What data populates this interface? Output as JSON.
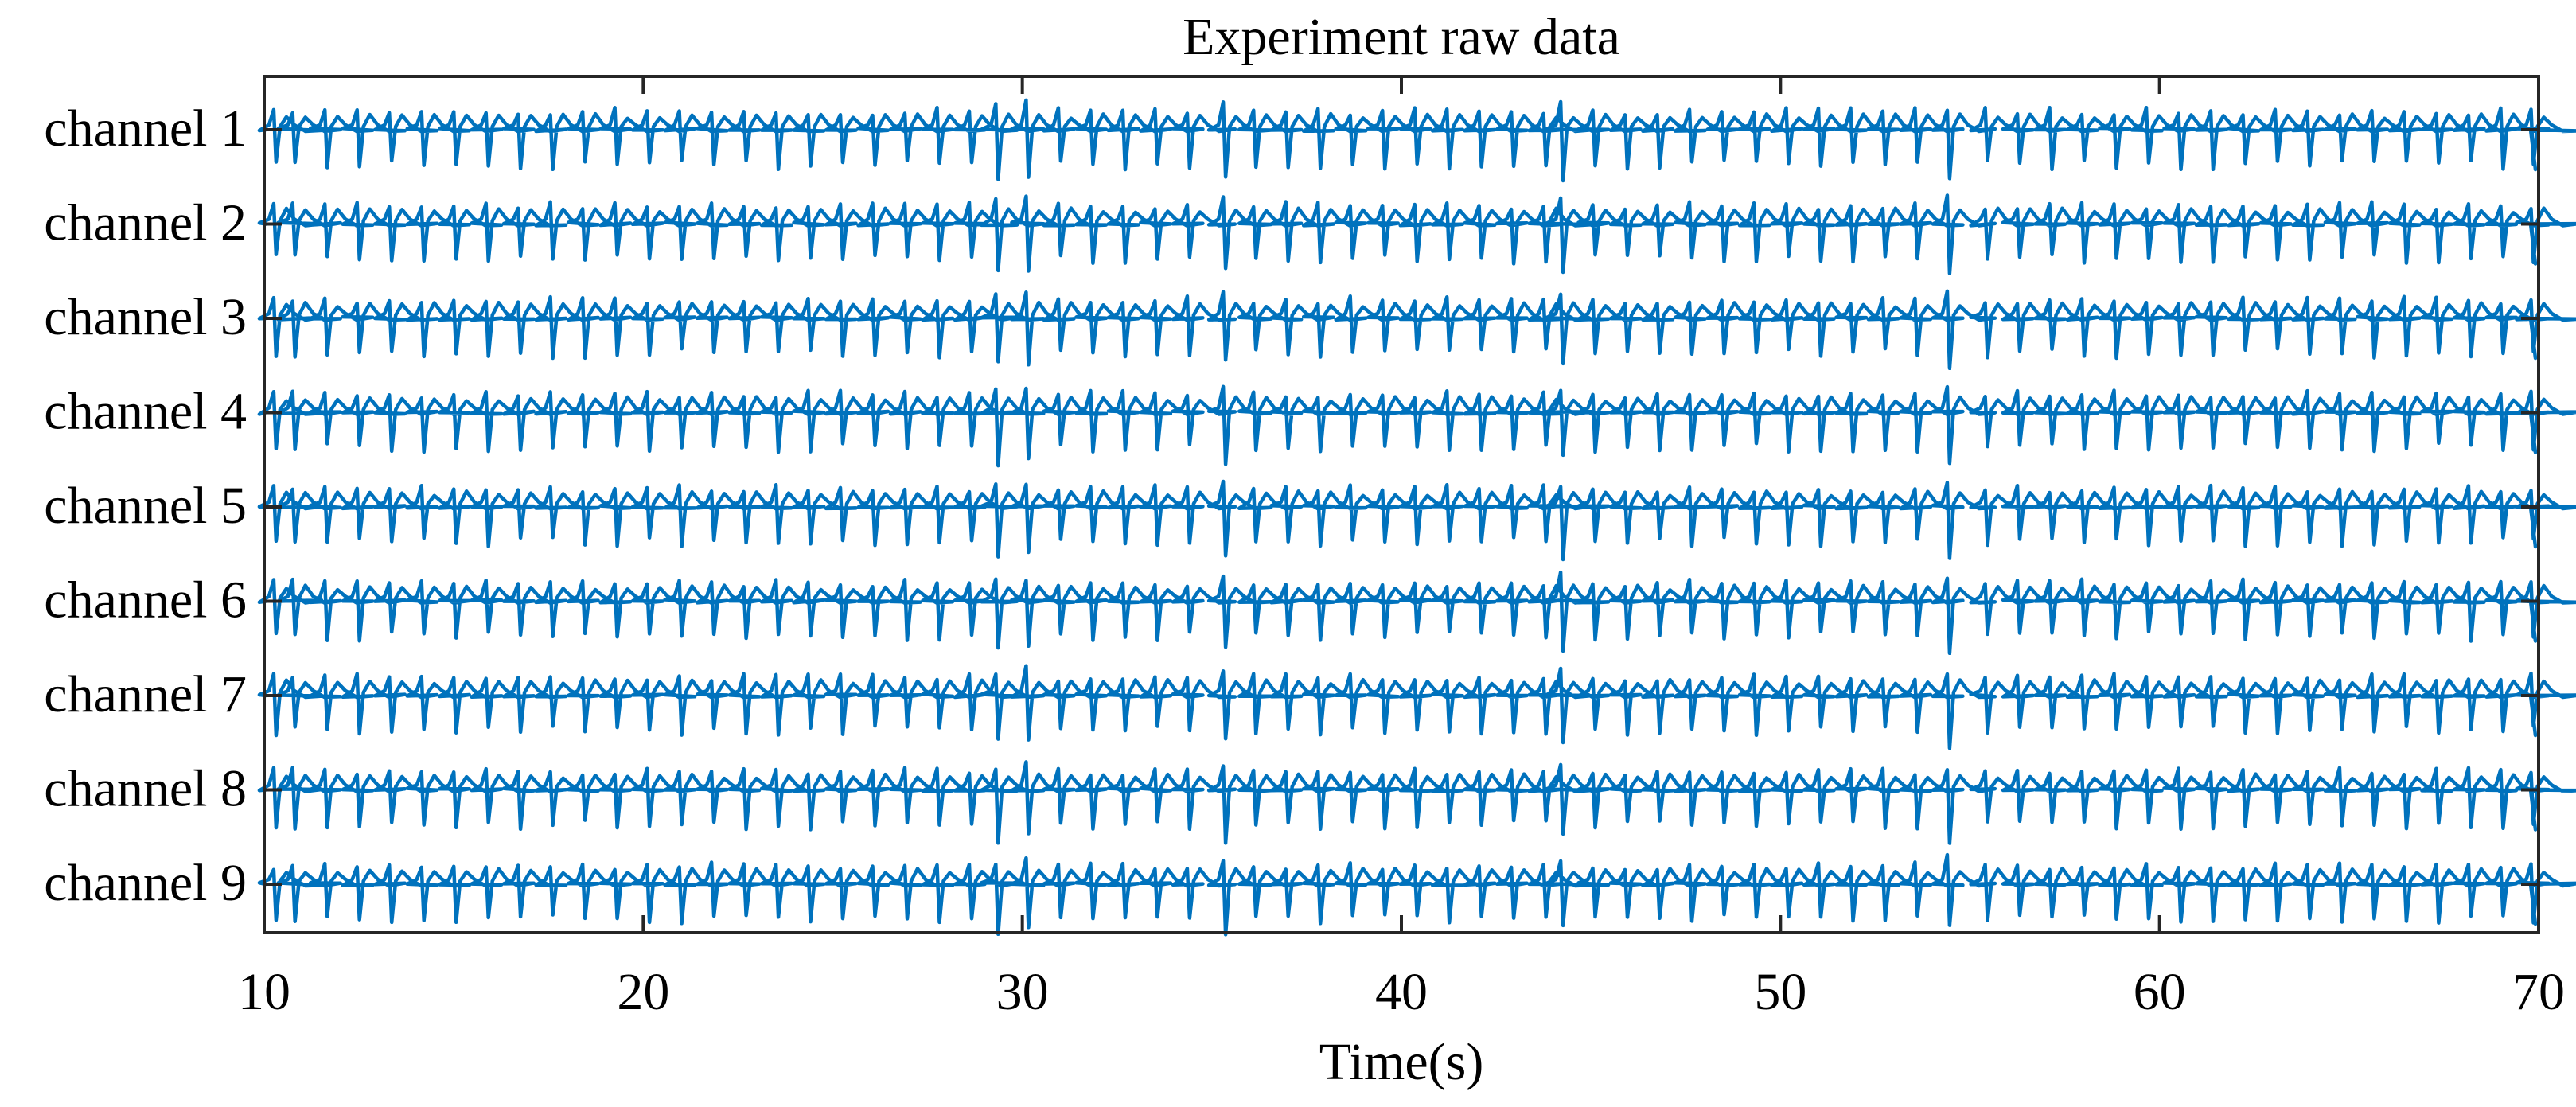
{
  "chart_data": {
    "type": "line",
    "title": "Experiment raw data",
    "xlabel": "Time(s)",
    "ylabel": "",
    "xlim": [
      10,
      70
    ],
    "x_ticks": [
      10,
      20,
      30,
      40,
      50,
      60,
      70
    ],
    "x_tick_labels": [
      "10",
      "20",
      "30",
      "40",
      "50",
      "60",
      "70"
    ],
    "grid": false,
    "legend": "none",
    "line_color": "#0072BD",
    "series": [
      {
        "name": "channel 1"
      },
      {
        "name": "channel 2"
      },
      {
        "name": "channel 3"
      },
      {
        "name": "channel 4"
      },
      {
        "name": "channel 5"
      },
      {
        "name": "channel 6"
      },
      {
        "name": "channel 7"
      },
      {
        "name": "channel 8"
      },
      {
        "name": "channel 9"
      }
    ],
    "signal": {
      "description": "periodic cardiac-like spikes, identical pattern across channels",
      "beat_period_s": 0.83,
      "first_beat_s": 10.25,
      "beat_times_s": [
        10.25,
        10.75,
        11.6,
        12.45,
        13.3,
        14.15,
        15.0,
        15.85,
        16.7,
        17.55,
        18.4,
        19.25,
        20.1,
        20.95,
        21.8,
        22.65,
        23.5,
        24.35,
        25.2,
        26.05,
        26.9,
        27.75,
        28.6,
        29.3,
        30.1,
        30.95,
        31.8,
        32.65,
        33.5,
        34.35,
        35.3,
        36.1,
        36.95,
        37.8,
        38.65,
        39.5,
        40.35,
        41.2,
        42.05,
        42.9,
        43.75,
        44.2,
        45.05,
        45.9,
        46.75,
        47.6,
        48.45,
        49.3,
        50.15,
        51.0,
        51.85,
        52.7,
        53.55,
        54.4,
        55.4,
        56.25,
        57.1,
        57.95,
        58.8,
        59.65,
        60.5,
        61.35,
        62.2,
        63.05,
        63.9,
        64.75,
        65.6,
        66.45,
        67.3,
        68.15,
        69.0,
        69.8
      ]
    }
  }
}
